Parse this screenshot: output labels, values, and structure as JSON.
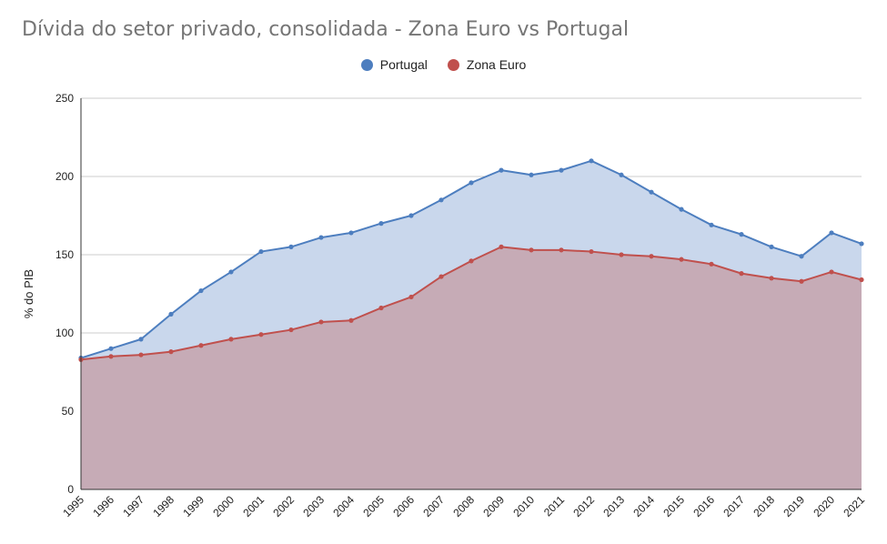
{
  "chart_data": {
    "type": "area",
    "title": "Dívida do setor privado, consolidada - Zona Euro vs Portugal",
    "xlabel": "",
    "ylabel": "% do PIB",
    "ylim": [
      0,
      250
    ],
    "yticks": [
      0,
      50,
      100,
      150,
      200,
      250
    ],
    "grid": true,
    "legend_position": "top-center",
    "x": [
      "1995",
      "1996",
      "1997",
      "1998",
      "1999",
      "2000",
      "2001",
      "2002",
      "2003",
      "2004",
      "2005",
      "2006",
      "2007",
      "2008",
      "2009",
      "2010",
      "2011",
      "2012",
      "2013",
      "2014",
      "2015",
      "2016",
      "2017",
      "2018",
      "2019",
      "2020",
      "2021"
    ],
    "series": [
      {
        "name": "Portugal",
        "color": "#4d7ebf",
        "fill": "#c9d7ec",
        "values": [
          84,
          90,
          96,
          112,
          127,
          139,
          152,
          155,
          161,
          164,
          170,
          175,
          185,
          196,
          204,
          201,
          204,
          210,
          201,
          190,
          179,
          169,
          163,
          155,
          149,
          164,
          157
        ]
      },
      {
        "name": "Zona Euro",
        "color": "#c0504d",
        "fill": "#c6abb6",
        "values": [
          83,
          85,
          86,
          88,
          92,
          96,
          99,
          102,
          107,
          108,
          116,
          123,
          136,
          146,
          155,
          153,
          153,
          152,
          150,
          149,
          147,
          144,
          138,
          135,
          133,
          139,
          134
        ]
      }
    ]
  }
}
